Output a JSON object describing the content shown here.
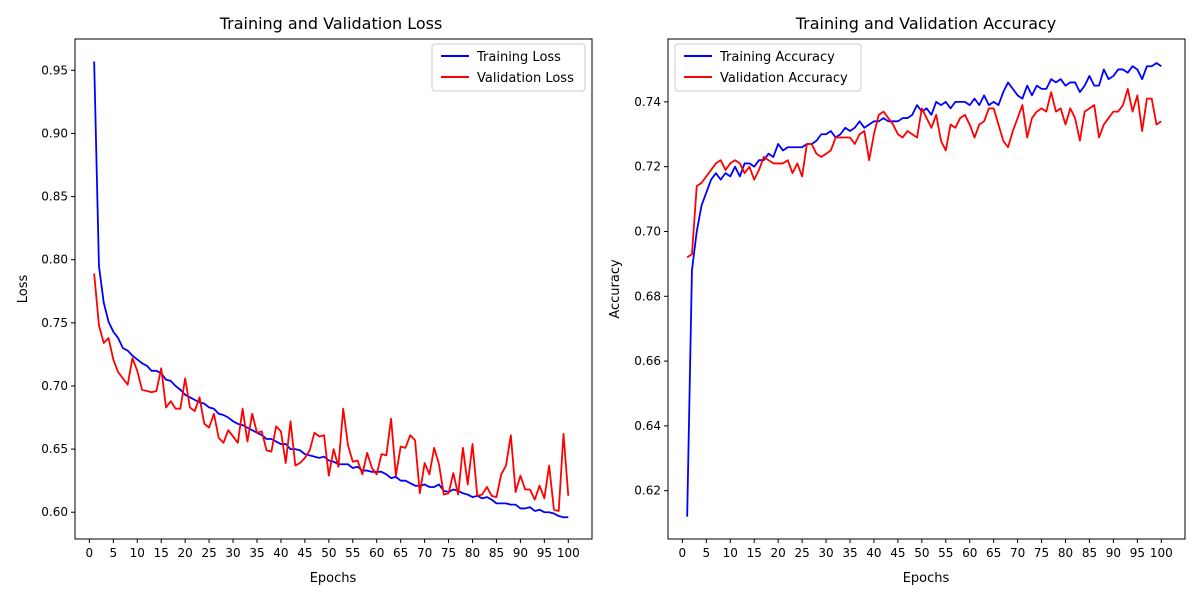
{
  "chart_data": [
    {
      "type": "line",
      "title": "Training and Validation Loss",
      "xlabel": "Epochs",
      "ylabel": "Loss",
      "xlim": [
        -3,
        104.95
      ],
      "ylim": [
        0.5788,
        0.9748
      ],
      "xticks": [
        0,
        5,
        10,
        15,
        20,
        25,
        30,
        35,
        40,
        45,
        50,
        55,
        60,
        65,
        70,
        75,
        80,
        85,
        90,
        95,
        100
      ],
      "yticks": [
        0.6,
        0.65,
        0.7,
        0.75,
        0.8,
        0.85,
        0.9,
        0.95
      ],
      "ytick_labels": [
        "0.60",
        "0.65",
        "0.70",
        "0.75",
        "0.80",
        "0.85",
        "0.90",
        "0.95"
      ],
      "legend_position": "upper-right",
      "grid": false,
      "series": [
        {
          "name": "Training Loss",
          "color": "#0000ff",
          "x": [
            1,
            2,
            3,
            4,
            5,
            6,
            7,
            8,
            9,
            10,
            11,
            12,
            13,
            14,
            15,
            16,
            17,
            18,
            19,
            20,
            21,
            22,
            23,
            24,
            25,
            26,
            27,
            28,
            29,
            30,
            31,
            32,
            33,
            34,
            35,
            36,
            37,
            38,
            39,
            40,
            41,
            42,
            43,
            44,
            45,
            46,
            47,
            48,
            49,
            50,
            51,
            52,
            53,
            54,
            55,
            56,
            57,
            58,
            59,
            60,
            61,
            62,
            63,
            64,
            65,
            66,
            67,
            68,
            69,
            70,
            71,
            72,
            73,
            74,
            75,
            76,
            77,
            78,
            79,
            80,
            81,
            82,
            83,
            84,
            85,
            86,
            87,
            88,
            89,
            90,
            91,
            92,
            93,
            94,
            95,
            96,
            97,
            98,
            99,
            100
          ],
          "values": [
            0.957,
            0.795,
            0.766,
            0.751,
            0.743,
            0.738,
            0.73,
            0.728,
            0.724,
            0.721,
            0.718,
            0.716,
            0.712,
            0.712,
            0.71,
            0.705,
            0.704,
            0.7,
            0.697,
            0.693,
            0.691,
            0.689,
            0.687,
            0.686,
            0.683,
            0.682,
            0.678,
            0.677,
            0.675,
            0.672,
            0.67,
            0.669,
            0.667,
            0.665,
            0.663,
            0.661,
            0.658,
            0.658,
            0.656,
            0.654,
            0.654,
            0.65,
            0.65,
            0.649,
            0.646,
            0.645,
            0.644,
            0.643,
            0.644,
            0.641,
            0.64,
            0.638,
            0.638,
            0.638,
            0.635,
            0.636,
            0.633,
            0.633,
            0.632,
            0.632,
            0.632,
            0.63,
            0.627,
            0.628,
            0.625,
            0.625,
            0.623,
            0.621,
            0.621,
            0.622,
            0.62,
            0.62,
            0.622,
            0.617,
            0.616,
            0.618,
            0.617,
            0.615,
            0.614,
            0.612,
            0.613,
            0.611,
            0.612,
            0.61,
            0.607,
            0.607,
            0.607,
            0.606,
            0.606,
            0.603,
            0.603,
            0.604,
            0.601,
            0.602,
            0.6,
            0.6,
            0.599,
            0.597,
            0.596,
            0.596
          ]
        },
        {
          "name": "Validation Loss",
          "color": "#ff0000",
          "x": [
            1,
            2,
            3,
            4,
            5,
            6,
            7,
            8,
            9,
            10,
            11,
            12,
            13,
            14,
            15,
            16,
            17,
            18,
            19,
            20,
            21,
            22,
            23,
            24,
            25,
            26,
            27,
            28,
            29,
            30,
            31,
            32,
            33,
            34,
            35,
            36,
            37,
            38,
            39,
            40,
            41,
            42,
            43,
            44,
            45,
            46,
            47,
            48,
            49,
            50,
            51,
            52,
            53,
            54,
            55,
            56,
            57,
            58,
            59,
            60,
            61,
            62,
            63,
            64,
            65,
            66,
            67,
            68,
            69,
            70,
            71,
            72,
            73,
            74,
            75,
            76,
            77,
            78,
            79,
            80,
            81,
            82,
            83,
            84,
            85,
            86,
            87,
            88,
            89,
            90,
            91,
            92,
            93,
            94,
            95,
            96,
            97,
            98,
            99,
            100
          ],
          "values": [
            0.789,
            0.748,
            0.734,
            0.738,
            0.721,
            0.711,
            0.706,
            0.701,
            0.722,
            0.712,
            0.697,
            0.696,
            0.695,
            0.696,
            0.714,
            0.683,
            0.688,
            0.682,
            0.682,
            0.706,
            0.683,
            0.68,
            0.691,
            0.67,
            0.667,
            0.678,
            0.659,
            0.655,
            0.665,
            0.66,
            0.655,
            0.682,
            0.656,
            0.678,
            0.663,
            0.664,
            0.649,
            0.648,
            0.668,
            0.664,
            0.639,
            0.672,
            0.637,
            0.639,
            0.643,
            0.649,
            0.663,
            0.66,
            0.661,
            0.629,
            0.65,
            0.636,
            0.682,
            0.653,
            0.64,
            0.641,
            0.63,
            0.647,
            0.635,
            0.63,
            0.646,
            0.645,
            0.674,
            0.629,
            0.652,
            0.651,
            0.661,
            0.657,
            0.615,
            0.639,
            0.63,
            0.651,
            0.638,
            0.614,
            0.615,
            0.631,
            0.614,
            0.651,
            0.622,
            0.654,
            0.613,
            0.614,
            0.62,
            0.613,
            0.612,
            0.63,
            0.637,
            0.661,
            0.616,
            0.629,
            0.618,
            0.618,
            0.61,
            0.621,
            0.611,
            0.637,
            0.602,
            0.601,
            0.662,
            0.613
          ]
        }
      ]
    },
    {
      "type": "line",
      "title": "Training and Validation Accuracy",
      "xlabel": "Epochs",
      "ylabel": "Accuracy",
      "xlim": [
        -3,
        104.95
      ],
      "ylim": [
        0.6051,
        0.7594
      ],
      "xticks": [
        0,
        5,
        10,
        15,
        20,
        25,
        30,
        35,
        40,
        45,
        50,
        55,
        60,
        65,
        70,
        75,
        80,
        85,
        90,
        95,
        100
      ],
      "yticks": [
        0.62,
        0.64,
        0.66,
        0.68,
        0.7,
        0.72,
        0.74
      ],
      "ytick_labels": [
        "0.62",
        "0.64",
        "0.66",
        "0.68",
        "0.70",
        "0.72",
        "0.74"
      ],
      "legend_position": "upper-left",
      "grid": false,
      "series": [
        {
          "name": "Training Accuracy",
          "color": "#0000ff",
          "x": [
            1,
            2,
            3,
            4,
            5,
            6,
            7,
            8,
            9,
            10,
            11,
            12,
            13,
            14,
            15,
            16,
            17,
            18,
            19,
            20,
            21,
            22,
            23,
            24,
            25,
            26,
            27,
            28,
            29,
            30,
            31,
            32,
            33,
            34,
            35,
            36,
            37,
            38,
            39,
            40,
            41,
            42,
            43,
            44,
            45,
            46,
            47,
            48,
            49,
            50,
            51,
            52,
            53,
            54,
            55,
            56,
            57,
            58,
            59,
            60,
            61,
            62,
            63,
            64,
            65,
            66,
            67,
            68,
            69,
            70,
            71,
            72,
            73,
            74,
            75,
            76,
            77,
            78,
            79,
            80,
            81,
            82,
            83,
            84,
            85,
            86,
            87,
            88,
            89,
            90,
            91,
            92,
            93,
            94,
            95,
            96,
            97,
            98,
            99,
            100
          ],
          "values": [
            0.612,
            0.688,
            0.7,
            0.708,
            0.712,
            0.716,
            0.718,
            0.716,
            0.718,
            0.717,
            0.72,
            0.717,
            0.721,
            0.721,
            0.72,
            0.722,
            0.722,
            0.724,
            0.723,
            0.727,
            0.725,
            0.726,
            0.726,
            0.726,
            0.726,
            0.727,
            0.727,
            0.728,
            0.73,
            0.73,
            0.731,
            0.729,
            0.73,
            0.732,
            0.731,
            0.732,
            0.734,
            0.732,
            0.733,
            0.734,
            0.734,
            0.735,
            0.734,
            0.734,
            0.734,
            0.735,
            0.735,
            0.736,
            0.739,
            0.737,
            0.738,
            0.736,
            0.74,
            0.739,
            0.74,
            0.738,
            0.74,
            0.74,
            0.74,
            0.739,
            0.741,
            0.739,
            0.742,
            0.739,
            0.74,
            0.739,
            0.743,
            0.746,
            0.744,
            0.742,
            0.741,
            0.745,
            0.742,
            0.745,
            0.744,
            0.744,
            0.747,
            0.746,
            0.747,
            0.745,
            0.746,
            0.746,
            0.743,
            0.745,
            0.748,
            0.745,
            0.745,
            0.75,
            0.747,
            0.748,
            0.75,
            0.75,
            0.749,
            0.751,
            0.75,
            0.747,
            0.751,
            0.751,
            0.752,
            0.751
          ]
        },
        {
          "name": "Validation Accuracy",
          "color": "#ff0000",
          "x": [
            1,
            2,
            3,
            4,
            5,
            6,
            7,
            8,
            9,
            10,
            11,
            12,
            13,
            14,
            15,
            16,
            17,
            18,
            19,
            20,
            21,
            22,
            23,
            24,
            25,
            26,
            27,
            28,
            29,
            30,
            31,
            32,
            33,
            34,
            35,
            36,
            37,
            38,
            39,
            40,
            41,
            42,
            43,
            44,
            45,
            46,
            47,
            48,
            49,
            50,
            51,
            52,
            53,
            54,
            55,
            56,
            57,
            58,
            59,
            60,
            61,
            62,
            63,
            64,
            65,
            66,
            67,
            68,
            69,
            70,
            71,
            72,
            73,
            74,
            75,
            76,
            77,
            78,
            79,
            80,
            81,
            82,
            83,
            84,
            85,
            86,
            87,
            88,
            89,
            90,
            91,
            92,
            93,
            94,
            95,
            96,
            97,
            98,
            99,
            100
          ],
          "values": [
            0.692,
            0.693,
            0.714,
            0.715,
            0.717,
            0.719,
            0.721,
            0.722,
            0.719,
            0.721,
            0.722,
            0.721,
            0.718,
            0.72,
            0.716,
            0.719,
            0.723,
            0.722,
            0.721,
            0.721,
            0.721,
            0.722,
            0.718,
            0.721,
            0.717,
            0.727,
            0.727,
            0.724,
            0.723,
            0.724,
            0.725,
            0.729,
            0.729,
            0.729,
            0.729,
            0.727,
            0.73,
            0.731,
            0.722,
            0.73,
            0.736,
            0.737,
            0.735,
            0.733,
            0.73,
            0.729,
            0.731,
            0.73,
            0.729,
            0.738,
            0.735,
            0.732,
            0.736,
            0.728,
            0.725,
            0.733,
            0.732,
            0.735,
            0.736,
            0.733,
            0.729,
            0.733,
            0.734,
            0.738,
            0.738,
            0.733,
            0.728,
            0.726,
            0.731,
            0.735,
            0.739,
            0.729,
            0.735,
            0.737,
            0.738,
            0.737,
            0.743,
            0.737,
            0.738,
            0.733,
            0.738,
            0.735,
            0.728,
            0.737,
            0.738,
            0.739,
            0.729,
            0.733,
            0.735,
            0.737,
            0.737,
            0.739,
            0.744,
            0.737,
            0.742,
            0.731,
            0.741,
            0.741,
            0.733,
            0.734
          ]
        }
      ]
    }
  ]
}
